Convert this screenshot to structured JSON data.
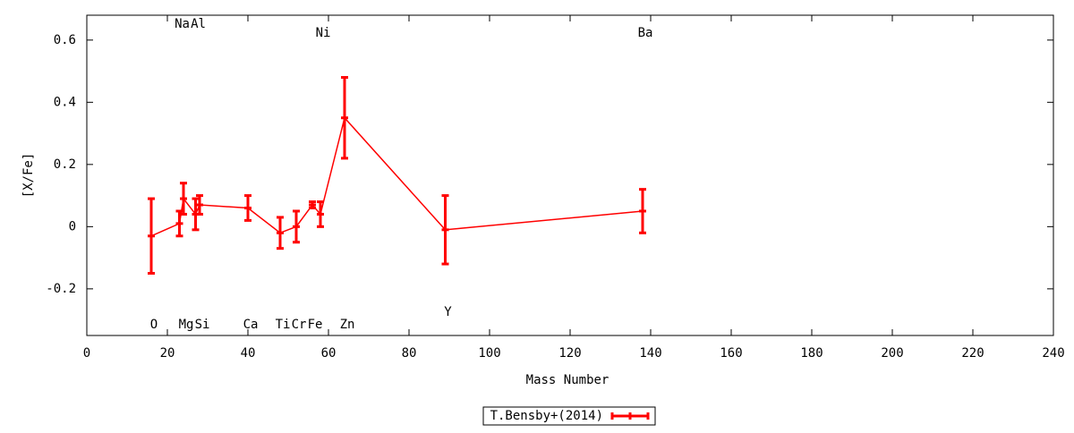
{
  "chart_data": {
    "type": "errorline",
    "xlabel": "Mass Number",
    "ylabel": "[X/Fe]",
    "xlim": [
      0,
      240
    ],
    "ylim": [
      -0.35,
      0.68
    ],
    "xticks": [
      0,
      20,
      40,
      60,
      80,
      100,
      120,
      140,
      160,
      180,
      200,
      220,
      240
    ],
    "yticks": [
      -0.2,
      0,
      0.2,
      0.4,
      0.6
    ],
    "series": [
      {
        "name": "T.Bensby+(2014)",
        "color": "#ff0000",
        "x": [
          16,
          23,
          24,
          27,
          28,
          40,
          48,
          52,
          56,
          58,
          64,
          89,
          138
        ],
        "values": [
          -0.03,
          0.01,
          0.09,
          0.04,
          0.07,
          0.06,
          -0.02,
          0.0,
          0.07,
          0.04,
          0.35,
          -0.01,
          0.05
        ],
        "errors": [
          0.12,
          0.04,
          0.05,
          0.05,
          0.03,
          0.04,
          0.05,
          0.05,
          0.01,
          0.04,
          0.13,
          0.11,
          0.07
        ],
        "labels": [
          "O",
          "Na",
          "Mg",
          "Al",
          "Si",
          "Ca",
          "Ti",
          "Cr",
          "Fe",
          "Ni",
          "Zn",
          "Y",
          "Ba"
        ]
      }
    ],
    "legend": "bottom"
  }
}
